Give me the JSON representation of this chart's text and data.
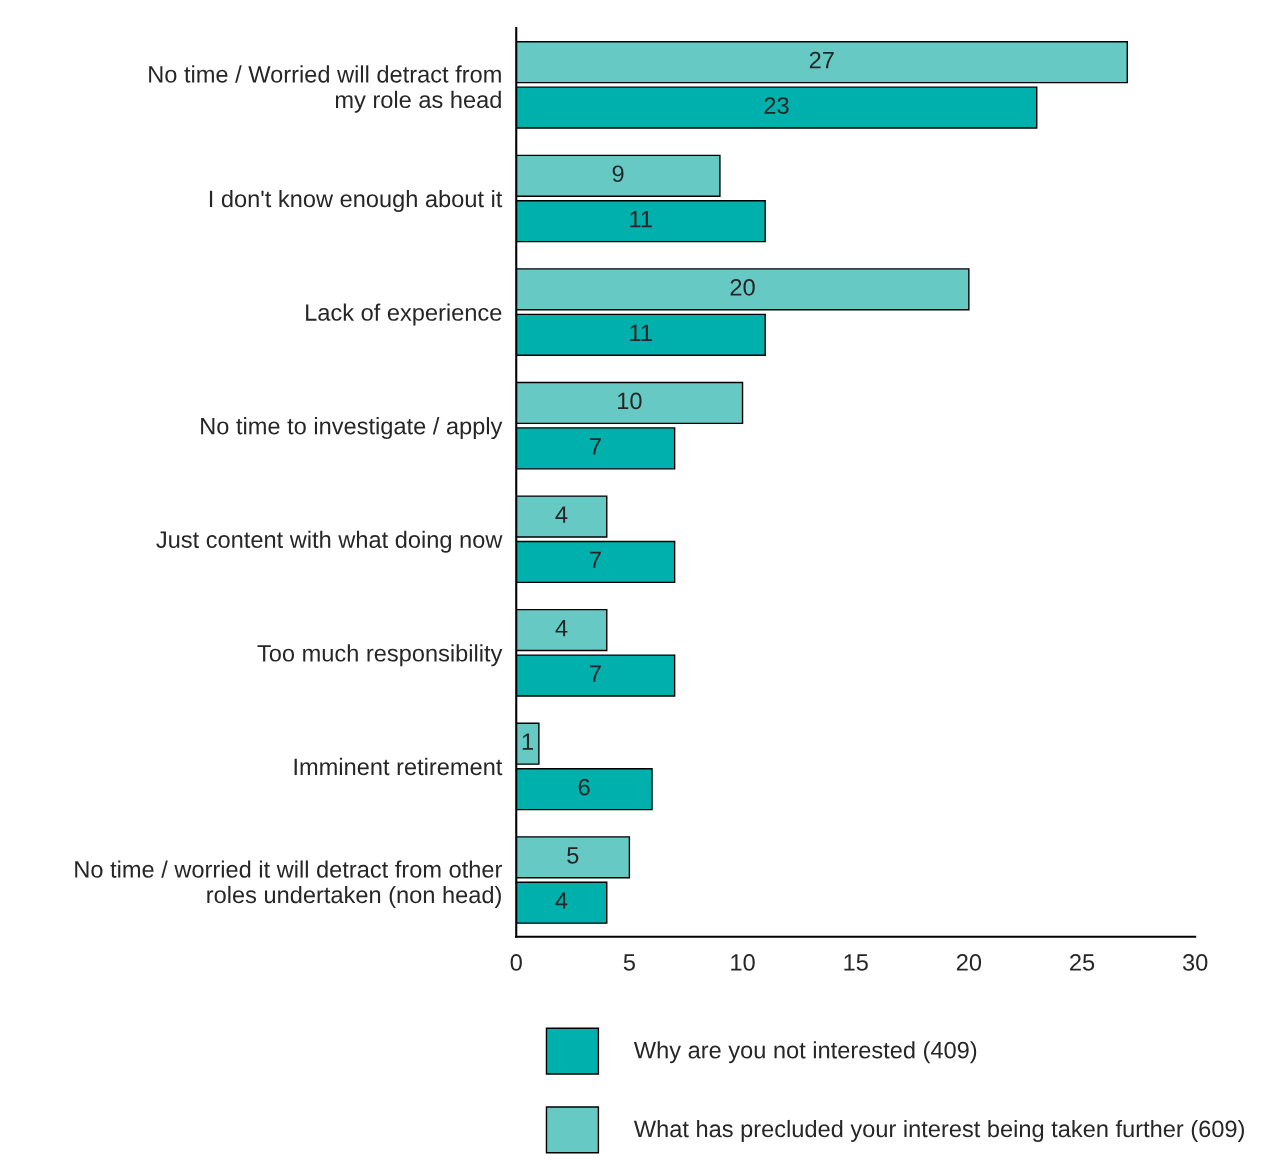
{
  "chart_data": {
    "type": "bar",
    "orientation": "horizontal",
    "categories": [
      "No time / Worried will detract from\nmy role as head",
      "I don't know enough about it",
      "Lack of experience",
      "No time to investigate / apply",
      "Just content with what doing now",
      "Too much responsibility",
      "Imminent retirement",
      "No time / worried it will detract from other\nroles undertaken (non head)"
    ],
    "series": [
      {
        "name": "Why are you not interested (409)",
        "color": "#00b0ac",
        "values": [
          23,
          11,
          11,
          7,
          7,
          7,
          6,
          4
        ]
      },
      {
        "name": "What has precluded your interest being taken further (609)",
        "color": "#66c9c4",
        "values": [
          27,
          9,
          20,
          10,
          4,
          4,
          1,
          5
        ]
      }
    ],
    "xlim": [
      0,
      30
    ],
    "xticks": [
      0,
      5,
      10,
      15,
      20,
      25,
      30
    ],
    "data_labels": true,
    "grid": false,
    "legend": "bottom"
  }
}
